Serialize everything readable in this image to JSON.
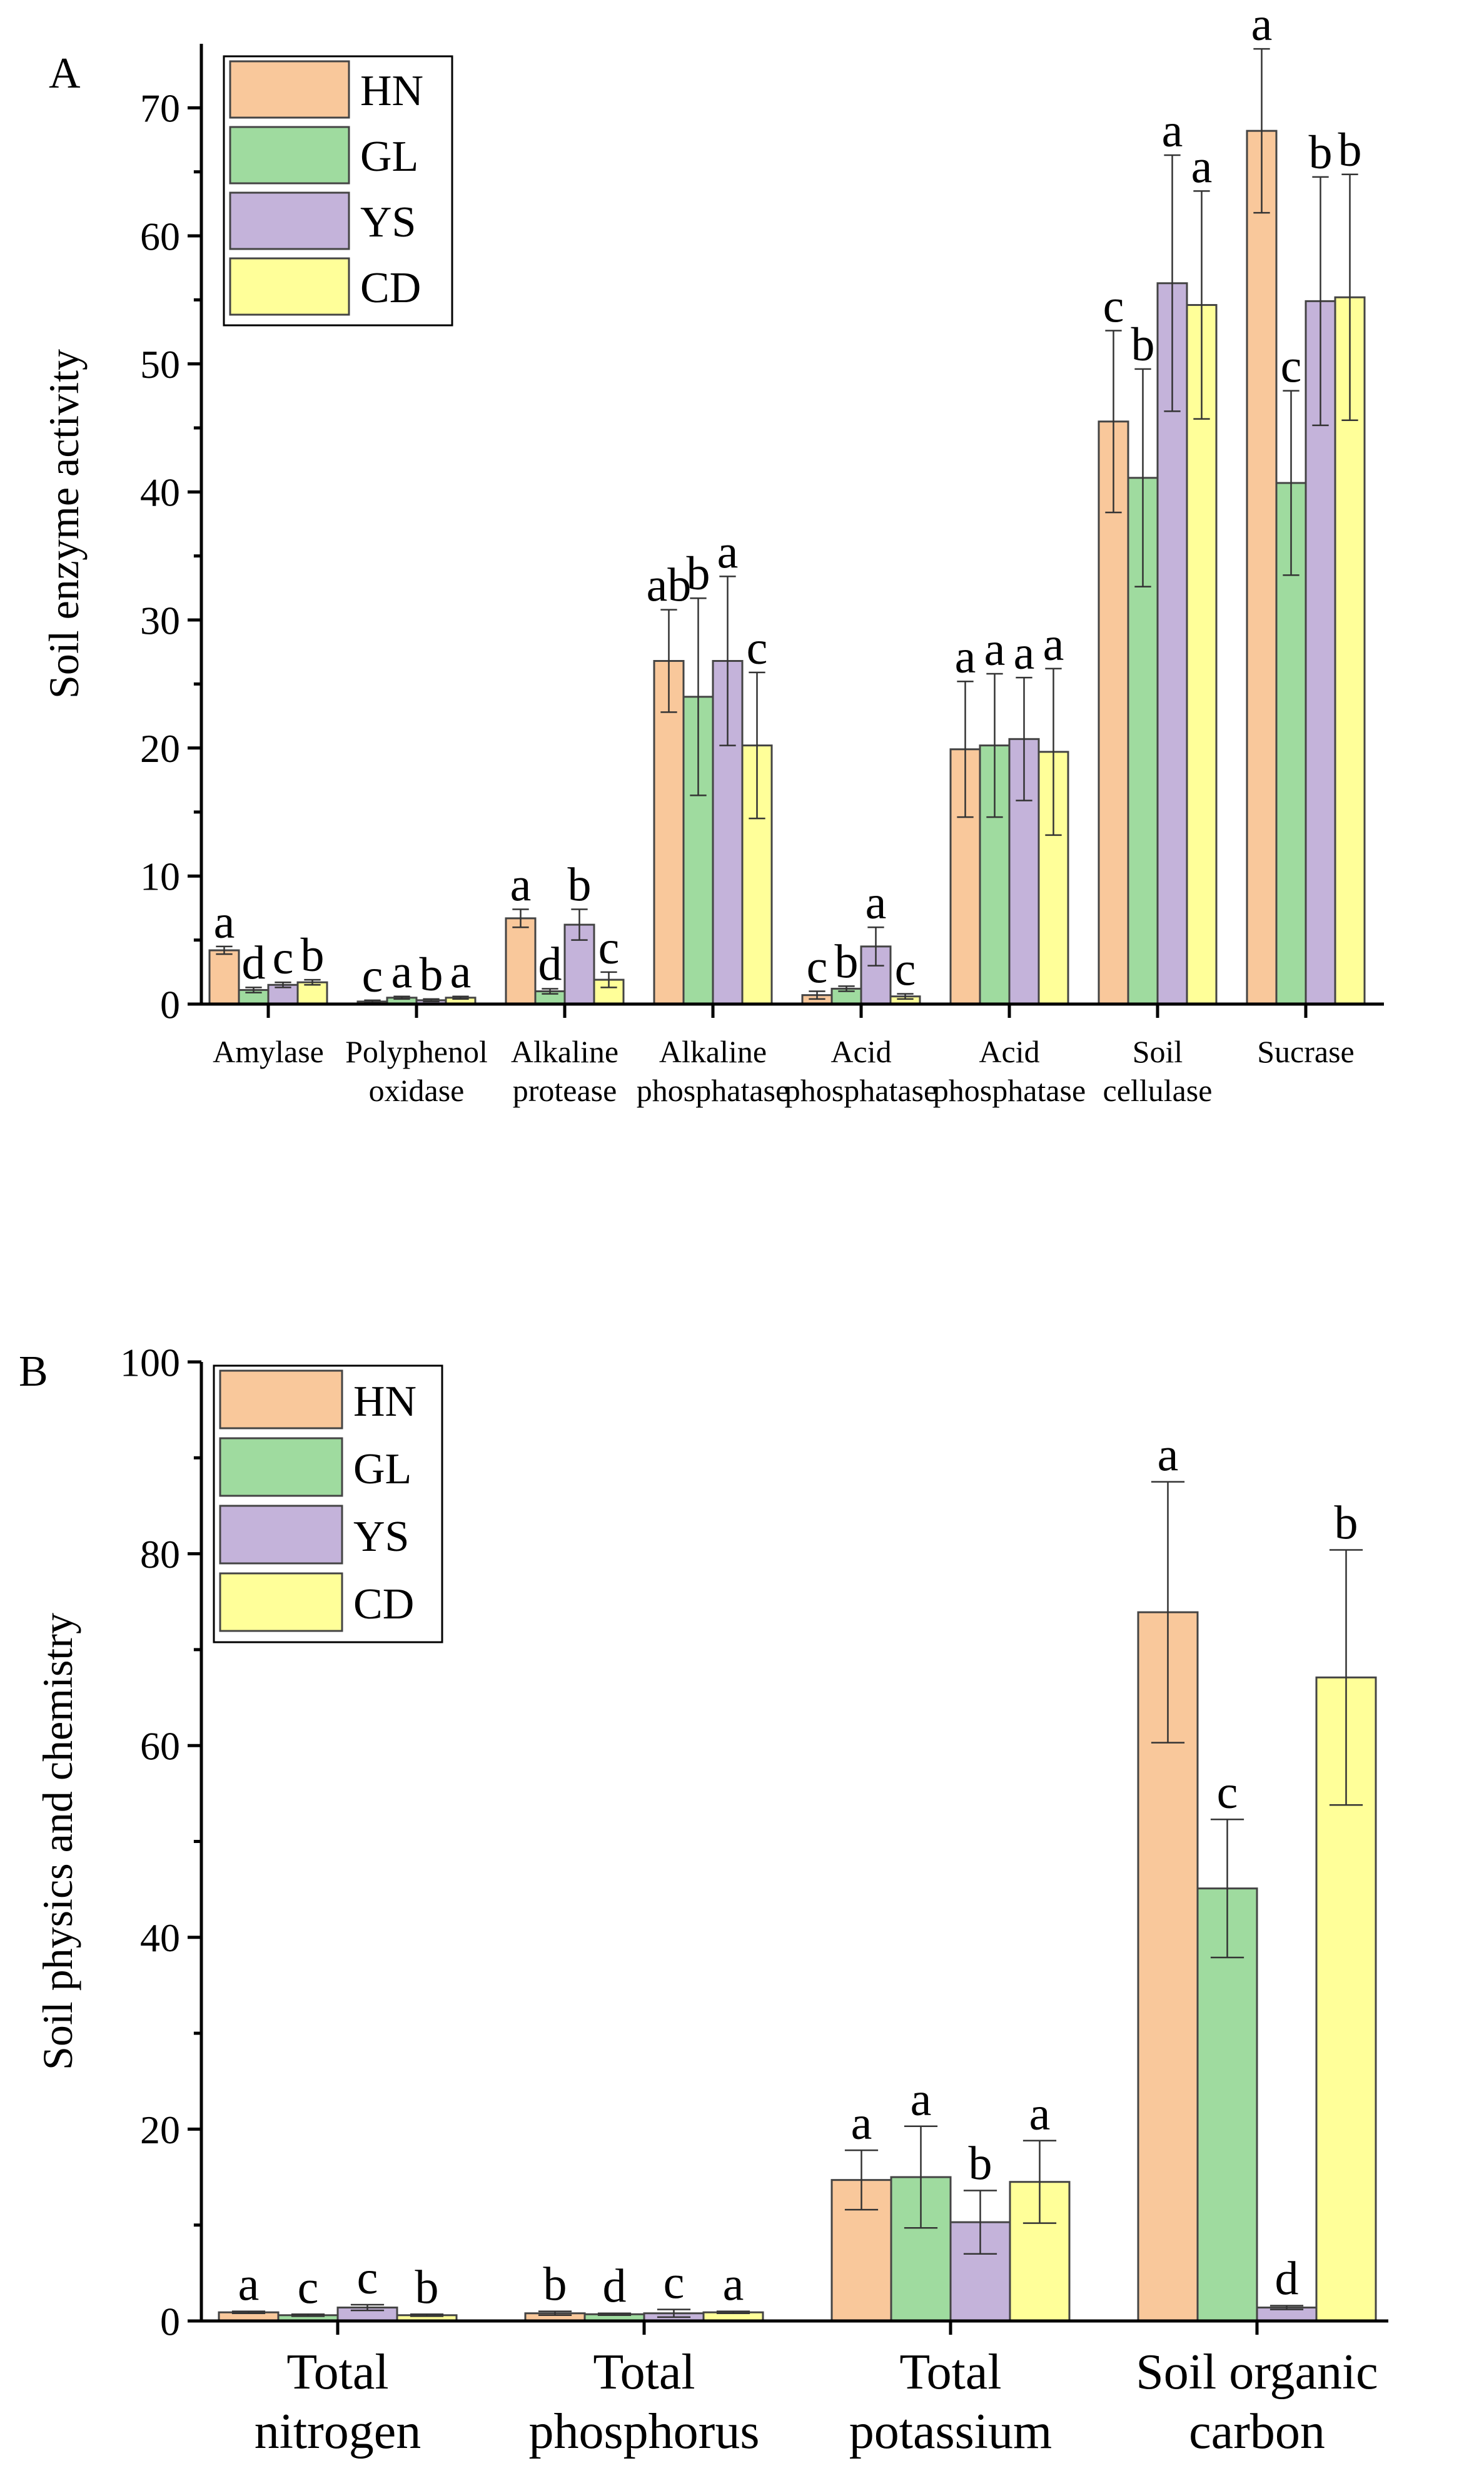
{
  "colors": {
    "HN": "#f9c89b",
    "GL": "#9fdb9f",
    "YS": "#c4b3da",
    "CD": "#ffff99",
    "bar_edge": "#444444",
    "axis": "#000000"
  },
  "chart_data": [
    {
      "panel_label": "A",
      "type": "bar",
      "ylabel": "Soil enzyme activity",
      "ylim": [
        0,
        75
      ],
      "yticks": [
        0,
        10,
        20,
        30,
        40,
        50,
        60,
        70
      ],
      "legend_position": "top-left",
      "categories": [
        [
          "Amylase"
        ],
        [
          "Polyphenol",
          "oxidase"
        ],
        [
          "Alkaline",
          "protease"
        ],
        [
          "Alkaline",
          "phosphatase"
        ],
        [
          "Acid",
          "phosphatase"
        ],
        [
          "Acid",
          "phosphatase"
        ],
        [
          "Soil",
          "cellulase"
        ],
        [
          "Sucrase"
        ]
      ],
      "series": [
        {
          "name": "HN",
          "values": [
            4.2,
            0.2,
            6.7,
            26.8,
            0.7,
            19.9,
            45.5,
            68.2
          ],
          "errors": [
            0.3,
            0.1,
            0.7,
            4.0,
            0.3,
            5.3,
            7.1,
            6.4
          ],
          "letters": [
            "a",
            "c",
            "a",
            "ab",
            "c",
            "a",
            "c",
            "a"
          ]
        },
        {
          "name": "GL",
          "values": [
            1.1,
            0.5,
            1.0,
            24.0,
            1.2,
            20.2,
            41.1,
            40.7
          ],
          "errors": [
            0.2,
            0.1,
            0.2,
            7.7,
            0.2,
            5.6,
            8.5,
            7.2
          ],
          "letters": [
            "d",
            "a",
            "d",
            "b",
            "b",
            "a",
            "b",
            "c"
          ]
        },
        {
          "name": "YS",
          "values": [
            1.5,
            0.3,
            6.2,
            26.8,
            4.5,
            20.7,
            56.3,
            54.9
          ],
          "errors": [
            0.2,
            0.1,
            1.2,
            6.6,
            1.5,
            4.8,
            10.0,
            9.7
          ],
          "letters": [
            "c",
            "b",
            "b",
            "a",
            "a",
            "a",
            "a",
            "b"
          ]
        },
        {
          "name": "CD",
          "values": [
            1.7,
            0.5,
            1.9,
            20.2,
            0.6,
            19.7,
            54.6,
            55.2
          ],
          "errors": [
            0.2,
            0.1,
            0.6,
            5.7,
            0.2,
            6.5,
            8.9,
            9.6
          ],
          "letters": [
            "b",
            "a",
            "c",
            "c",
            "c",
            "a",
            "a",
            "b"
          ]
        }
      ]
    },
    {
      "panel_label": "B",
      "type": "bar",
      "ylabel": "Soil physics and chemistry",
      "ylim": [
        0,
        100
      ],
      "yticks": [
        0,
        20,
        40,
        60,
        80,
        100
      ],
      "legend_position": "top-left",
      "categories": [
        [
          "Total",
          "nitrogen"
        ],
        [
          "Total",
          "phosphorus"
        ],
        [
          "Total",
          "potassium"
        ],
        [
          "Soil organic",
          "carbon"
        ]
      ],
      "series": [
        {
          "name": "HN",
          "values": [
            0.9,
            0.8,
            14.7,
            73.9
          ],
          "errors": [
            0.1,
            0.2,
            3.1,
            13.6
          ],
          "letters": [
            "a",
            "b",
            "a",
            "a"
          ]
        },
        {
          "name": "GL",
          "values": [
            0.6,
            0.7,
            15.0,
            45.1
          ],
          "errors": [
            0.1,
            0.1,
            5.3,
            7.2
          ],
          "letters": [
            "c",
            "d",
            "a",
            "c"
          ]
        },
        {
          "name": "YS",
          "values": [
            1.4,
            0.8,
            10.3,
            1.4
          ],
          "errors": [
            0.3,
            0.4,
            3.3,
            0.2
          ],
          "letters": [
            "c",
            "c",
            "b",
            "d"
          ]
        },
        {
          "name": "CD",
          "values": [
            0.6,
            0.9,
            14.5,
            67.1
          ],
          "errors": [
            0.1,
            0.1,
            4.3,
            13.3
          ],
          "letters": [
            "b",
            "a",
            "a",
            "b"
          ]
        }
      ]
    }
  ]
}
